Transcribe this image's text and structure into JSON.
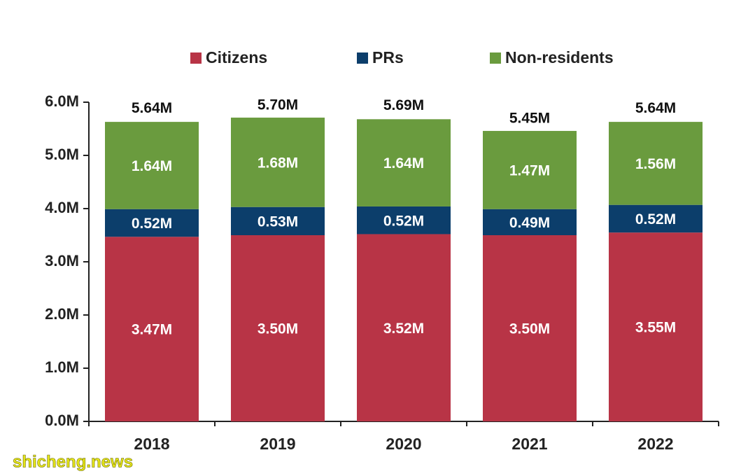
{
  "chart_data": {
    "type": "stacked_bar",
    "categories": [
      "2018",
      "2019",
      "2020",
      "2021",
      "2022"
    ],
    "series": [
      {
        "name": "Citizens",
        "color": "#b83446",
        "values": [
          3.47,
          3.5,
          3.52,
          3.5,
          3.55
        ],
        "value_labels": [
          "3.47M",
          "3.50M",
          "3.52M",
          "3.50M",
          "3.55M"
        ]
      },
      {
        "name": "PRs",
        "color": "#0c3e6b",
        "values": [
          0.52,
          0.53,
          0.52,
          0.49,
          0.52
        ],
        "value_labels": [
          "0.52M",
          "0.53M",
          "0.52M",
          "0.49M",
          "0.52M"
        ]
      },
      {
        "name": "Non-residents",
        "color": "#6a9b3e",
        "values": [
          1.64,
          1.68,
          1.64,
          1.47,
          1.56
        ],
        "value_labels": [
          "1.64M",
          "1.68M",
          "1.64M",
          "1.47M",
          "1.56M"
        ]
      }
    ],
    "totals": {
      "values": [
        5.64,
        5.7,
        5.69,
        5.45,
        5.64
      ],
      "value_labels": [
        "5.64M",
        "5.70M",
        "5.69M",
        "5.45M",
        "5.64M"
      ]
    },
    "ylim": [
      0,
      6
    ],
    "yticks": [
      {
        "value": 0,
        "label": "0.0M"
      },
      {
        "value": 1,
        "label": "1.0M"
      },
      {
        "value": 2,
        "label": "2.0M"
      },
      {
        "value": 3,
        "label": "3.0M"
      },
      {
        "value": 4,
        "label": "4.0M"
      },
      {
        "value": 5,
        "label": "5.0M"
      },
      {
        "value": 6,
        "label": "6.0M"
      }
    ],
    "legend": "top",
    "watermark": "shicheng.news"
  }
}
